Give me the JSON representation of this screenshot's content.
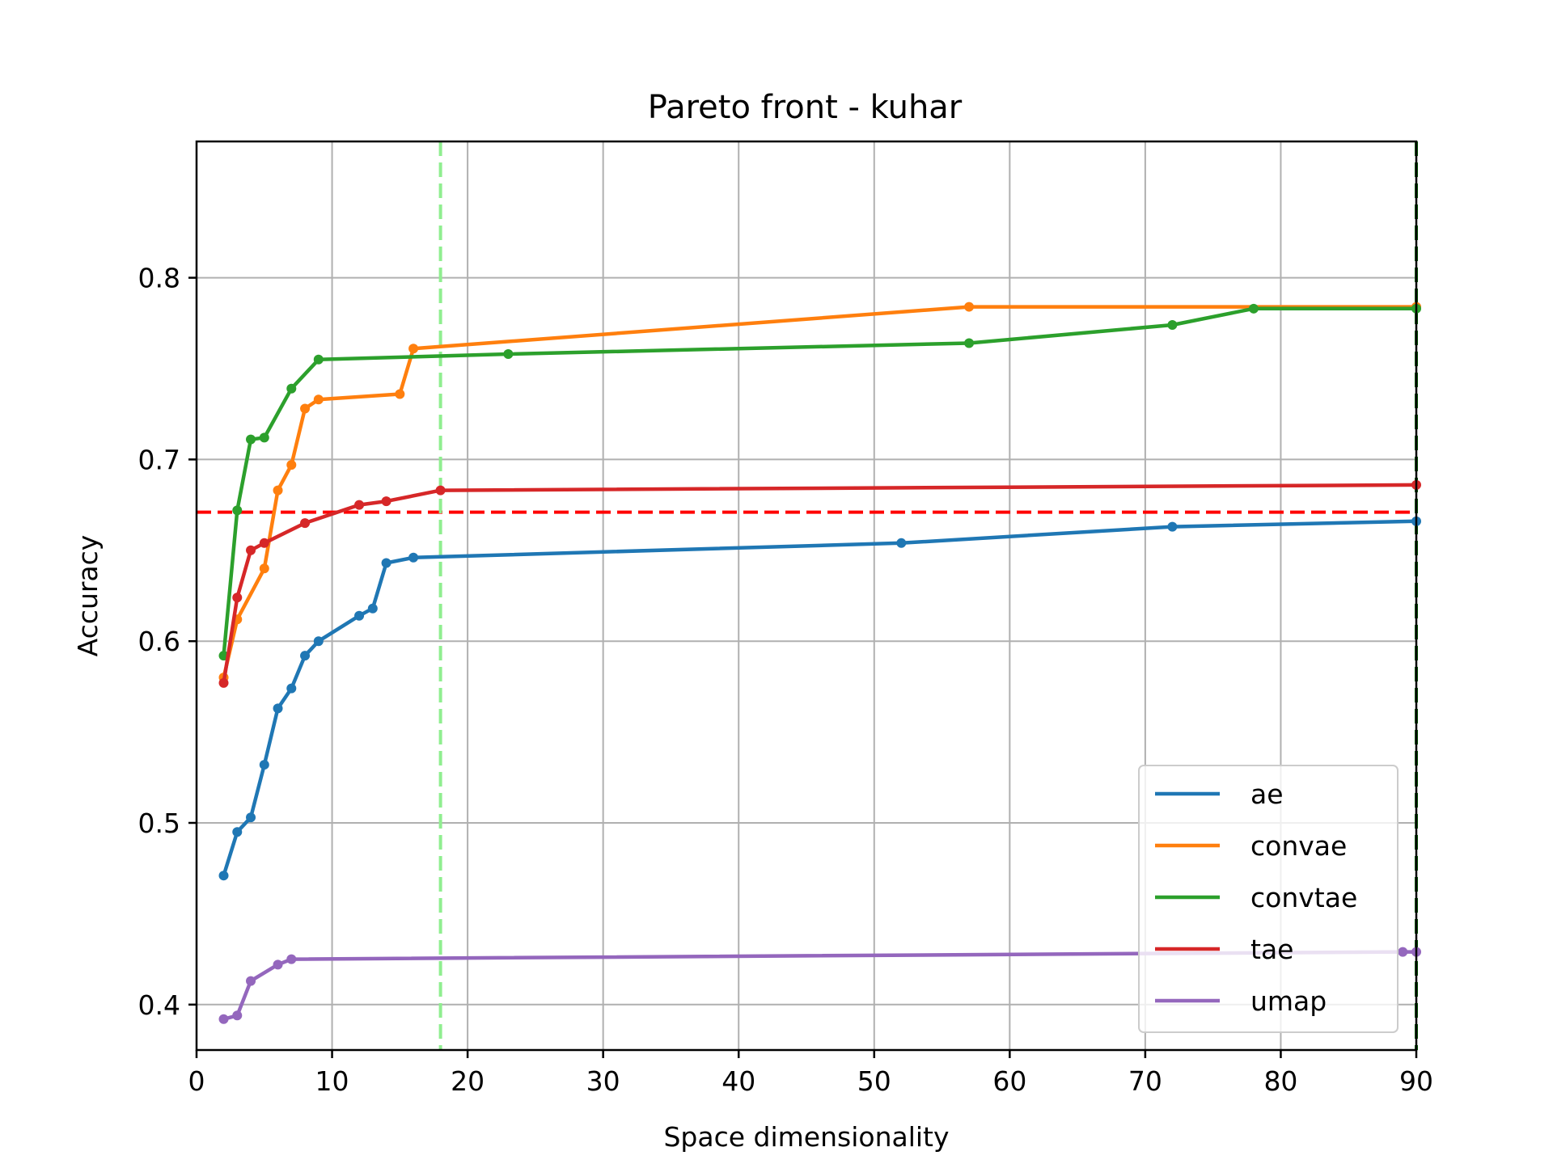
{
  "chart_data": {
    "type": "line",
    "title": "Pareto front - kuhar",
    "xlabel": "Space dimensionality",
    "ylabel": "Accuracy",
    "xlim": [
      0,
      90
    ],
    "ylim": [
      0.375,
      0.875
    ],
    "xticks": [
      "0",
      "10",
      "20",
      "30",
      "40",
      "50",
      "60",
      "70",
      "80",
      "90"
    ],
    "yticks": [
      "0.4",
      "0.5",
      "0.6",
      "0.7",
      "0.8"
    ],
    "grid": true,
    "legend_position": "lower-right",
    "series": [
      {
        "name": "ae",
        "color": "#1f77b4",
        "x": [
          2,
          3,
          4,
          5,
          6,
          7,
          8,
          9,
          12,
          13,
          14,
          16,
          52,
          72,
          90
        ],
        "y": [
          0.471,
          0.495,
          0.503,
          0.532,
          0.563,
          0.574,
          0.592,
          0.6,
          0.614,
          0.618,
          0.643,
          0.646,
          0.654,
          0.663,
          0.666
        ]
      },
      {
        "name": "convae",
        "color": "#ff7f0e",
        "x": [
          2,
          3,
          5,
          6,
          7,
          8,
          9,
          15,
          16,
          57,
          90
        ],
        "y": [
          0.58,
          0.612,
          0.64,
          0.683,
          0.697,
          0.728,
          0.733,
          0.736,
          0.761,
          0.784,
          0.784
        ]
      },
      {
        "name": "convtae",
        "color": "#2ca02c",
        "x": [
          2,
          3,
          4,
          5,
          7,
          9,
          23,
          57,
          72,
          78,
          90
        ],
        "y": [
          0.592,
          0.672,
          0.711,
          0.712,
          0.739,
          0.755,
          0.758,
          0.764,
          0.774,
          0.783,
          0.783
        ]
      },
      {
        "name": "tae",
        "color": "#d62728",
        "x": [
          2,
          3,
          4,
          5,
          8,
          12,
          14,
          18,
          90
        ],
        "y": [
          0.577,
          0.624,
          0.65,
          0.654,
          0.665,
          0.675,
          0.677,
          0.683,
          0.686
        ]
      },
      {
        "name": "umap",
        "color": "#9467bd",
        "x": [
          2,
          3,
          4,
          6,
          7,
          89,
          90
        ],
        "y": [
          0.392,
          0.394,
          0.413,
          0.422,
          0.425,
          0.429,
          0.429
        ]
      }
    ],
    "reference_lines": [
      {
        "orientation": "horizontal",
        "value": 0.671,
        "color": "#ff0000",
        "style": "dashed"
      },
      {
        "orientation": "vertical",
        "value": 18,
        "color": "#90ee90",
        "style": "dashed"
      },
      {
        "orientation": "vertical",
        "value": 90,
        "color": "#006400",
        "style": "dashed"
      }
    ]
  }
}
